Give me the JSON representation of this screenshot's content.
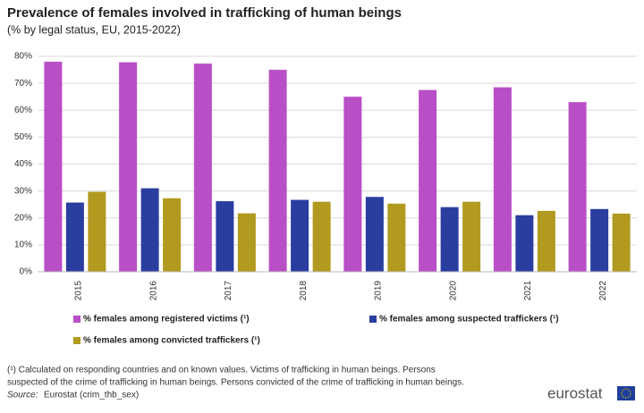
{
  "chart_data": {
    "type": "bar",
    "title": "Prevalence of females involved in trafficking of human beings",
    "subtitle": "(% by legal status, EU, 2015-2022)",
    "categories": [
      "2015",
      "2016",
      "2017",
      "2018",
      "2019",
      "2020",
      "2021",
      "2022"
    ],
    "series": [
      {
        "name": "% females among registered victims (¹)",
        "color": "#b94fc6",
        "values": [
          78,
          77.8,
          77.3,
          75,
          65,
          67.5,
          68.5,
          63
        ]
      },
      {
        "name": "% females among suspected traffickers (¹)",
        "color": "#2a3ea0",
        "values": [
          25.7,
          31,
          26.2,
          26.7,
          27.8,
          24,
          21,
          23.3
        ]
      },
      {
        "name": "% females among convicted traffickers (¹)",
        "color": "#b19a1f",
        "values": [
          29.7,
          27.3,
          21.7,
          26,
          25.3,
          26,
          22.6,
          21.6
        ]
      }
    ],
    "ylim": [
      0,
      80
    ],
    "yticks": [
      {
        "value": 0,
        "label": "0%"
      },
      {
        "value": 10,
        "label": "10%"
      },
      {
        "value": 20,
        "label": "20%"
      },
      {
        "value": 30,
        "label": "30%"
      },
      {
        "value": 40,
        "label": "40%"
      },
      {
        "value": 50,
        "label": "50%"
      },
      {
        "value": 60,
        "label": "60%"
      },
      {
        "value": 70,
        "label": "70%"
      },
      {
        "value": 80,
        "label": "80%"
      }
    ],
    "grid": true,
    "footnote": [
      "(¹) Calculated on responding countries and on known values. Victims of trafficking in human beings. Persons",
      "suspected of the crime of trafficking in human beings. Persons convicted of the crime of trafficking in human beings."
    ],
    "source_label": "Source:",
    "source": "Eurostat (crim_thb_sex)",
    "logo": "eurostat"
  }
}
